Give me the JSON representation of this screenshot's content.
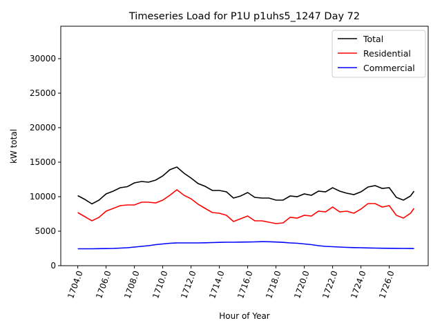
{
  "chart_data": {
    "type": "line",
    "title": "Timeseries Load for P1U p1uhs5_1247  Day 72",
    "xlabel": "Hour of Year",
    "ylabel": "kW total",
    "xlim": [
      1702.8,
      1728.75
    ],
    "ylim": [
      0,
      34700
    ],
    "xticks": [
      1704,
      1706,
      1708,
      1710,
      1712,
      1714,
      1716,
      1718,
      1720,
      1722,
      1724,
      1726
    ],
    "xtick_labels": [
      "1704.0",
      "1706.0",
      "1708.0",
      "1710.0",
      "1712.0",
      "1714.0",
      "1716.0",
      "1718.0",
      "1720.0",
      "1722.0",
      "1724.0",
      "1726.0"
    ],
    "yticks": [
      0,
      5000,
      10000,
      15000,
      20000,
      25000,
      30000
    ],
    "ytick_labels": [
      "0",
      "5000",
      "10000",
      "15000",
      "20000",
      "25000",
      "30000"
    ],
    "legend_position": "top-right",
    "grid": false,
    "x": [
      1704,
      1704.5,
      1705,
      1705.5,
      1706,
      1706.5,
      1707,
      1707.5,
      1708,
      1708.5,
      1709,
      1709.5,
      1710,
      1710.5,
      1711,
      1711.5,
      1712,
      1712.5,
      1713,
      1713.5,
      1714,
      1714.5,
      1715,
      1715.5,
      1716,
      1716.5,
      1717,
      1717.5,
      1718,
      1718.5,
      1719,
      1719.5,
      1720,
      1720.5,
      1721,
      1721.5,
      1722,
      1722.5,
      1723,
      1723.5,
      1724,
      1724.5,
      1725,
      1725.5,
      1726,
      1726.5,
      1727,
      1727.5,
      1727.75
    ],
    "series": [
      {
        "name": "Total",
        "color": "#000000",
        "values": [
          10150,
          9600,
          8950,
          9500,
          10400,
          10800,
          11300,
          11450,
          12000,
          12200,
          12100,
          12400,
          13000,
          13900,
          14300,
          13400,
          12700,
          11900,
          11500,
          10900,
          10900,
          10700,
          9800,
          10100,
          10600,
          9900,
          9800,
          9800,
          9500,
          9500,
          10100,
          10000,
          10400,
          10200,
          10800,
          10700,
          11300,
          10800,
          10500,
          10300,
          10700,
          11400,
          11600,
          11200,
          11300,
          9900,
          9500,
          10100,
          10800
        ]
      },
      {
        "name": "Residential",
        "color": "#ff0000",
        "values": [
          7700,
          7100,
          6500,
          7000,
          7900,
          8300,
          8700,
          8800,
          8800,
          9200,
          9200,
          9100,
          9500,
          10200,
          11000,
          10200,
          9700,
          8900,
          8300,
          7700,
          7600,
          7300,
          6400,
          6800,
          7200,
          6500,
          6500,
          6300,
          6100,
          6200,
          7000,
          6900,
          7300,
          7200,
          7900,
          7800,
          8500,
          7800,
          7900,
          7600,
          8200,
          9000,
          9000,
          8500,
          8700,
          7300,
          6900,
          7600,
          8300
        ]
      },
      {
        "name": "Commercial",
        "color": "#0000ff",
        "values": [
          2450,
          2450,
          2450,
          2470,
          2480,
          2500,
          2550,
          2600,
          2700,
          2800,
          2900,
          3050,
          3150,
          3250,
          3300,
          3300,
          3300,
          3300,
          3320,
          3350,
          3380,
          3400,
          3400,
          3420,
          3430,
          3450,
          3480,
          3470,
          3430,
          3380,
          3300,
          3250,
          3150,
          3050,
          2900,
          2800,
          2750,
          2700,
          2650,
          2620,
          2600,
          2570,
          2550,
          2530,
          2520,
          2510,
          2500,
          2490,
          2480
        ]
      }
    ]
  }
}
